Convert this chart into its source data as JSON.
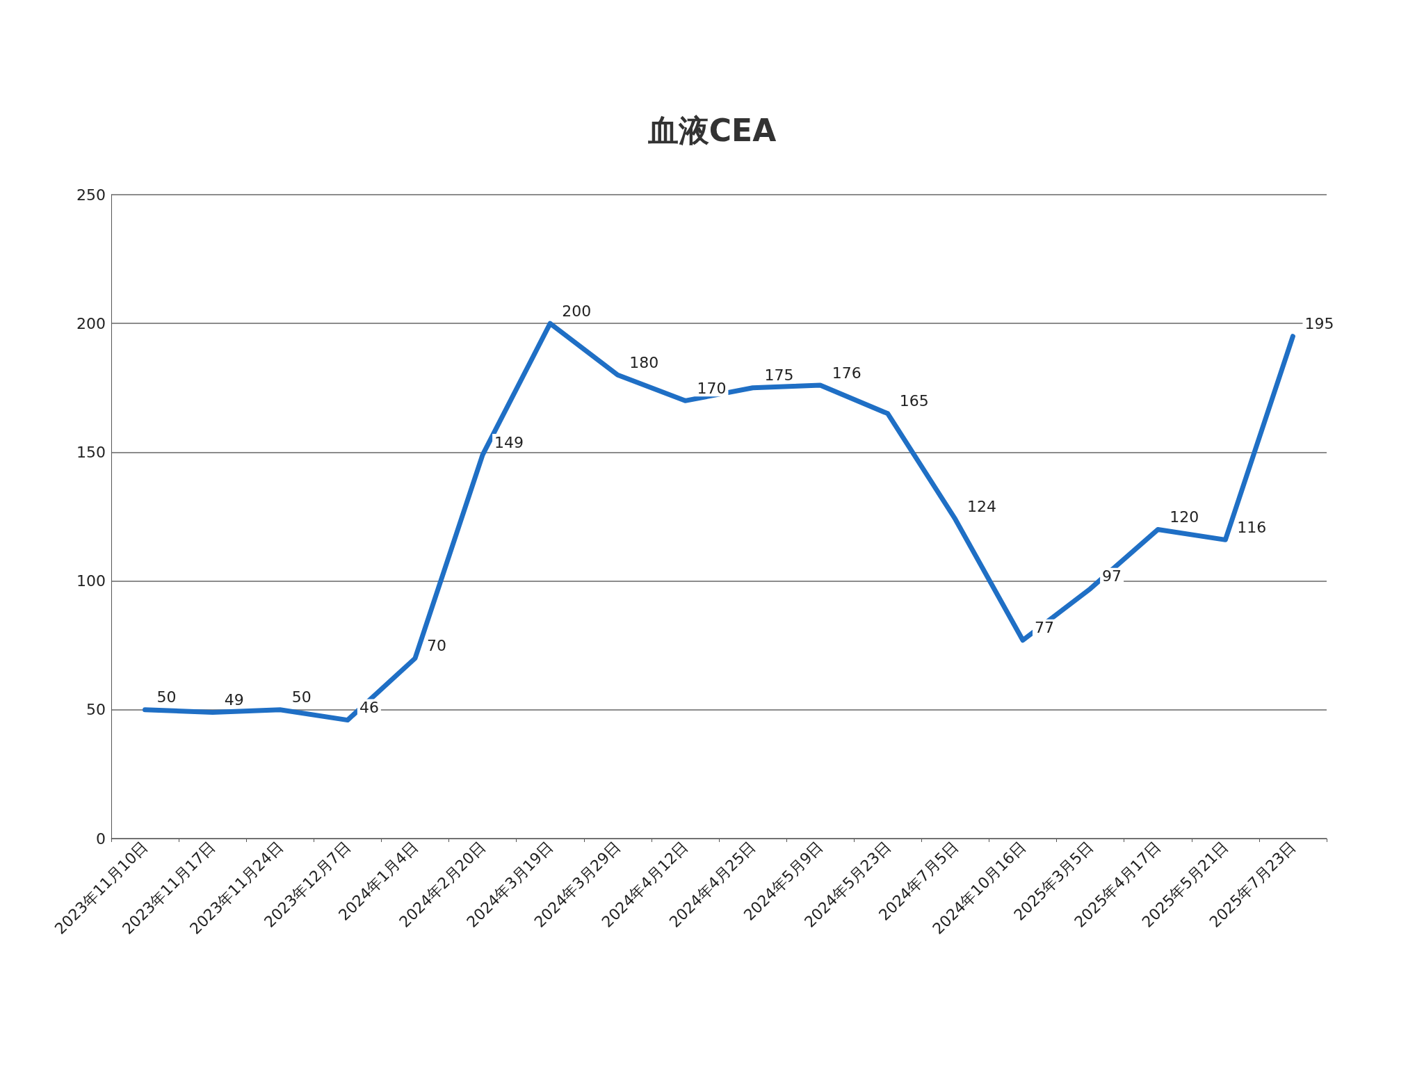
{
  "chart_data": {
    "type": "line",
    "title": "血液CEA",
    "categories": [
      "2023年11月10日",
      "2023年11月17日",
      "2023年11月24日",
      "2023年12月7日",
      "2024年1月4日",
      "2024年2月20日",
      "2024年3月19日",
      "2024年3月29日",
      "2024年4月12日",
      "2024年4月25日",
      "2024年5月9日",
      "2024年5月23日",
      "2024年7月5日",
      "2024年10月16日",
      "2025年3月5日",
      "2025年4月17日",
      "2025年5月21日",
      "2025年7月23日"
    ],
    "series": [
      {
        "color": "#1f6fc5",
        "values": [
          50,
          49,
          50,
          46,
          70,
          149,
          200,
          180,
          170,
          175,
          176,
          165,
          124,
          77,
          97,
          120,
          116,
          195
        ]
      }
    ],
    "ylim": [
      0,
      250
    ],
    "yticks": [
      0,
      50,
      100,
      150,
      200,
      250
    ],
    "grid": "y",
    "data_labels": true,
    "marker": "none",
    "line_style": "solid"
  }
}
